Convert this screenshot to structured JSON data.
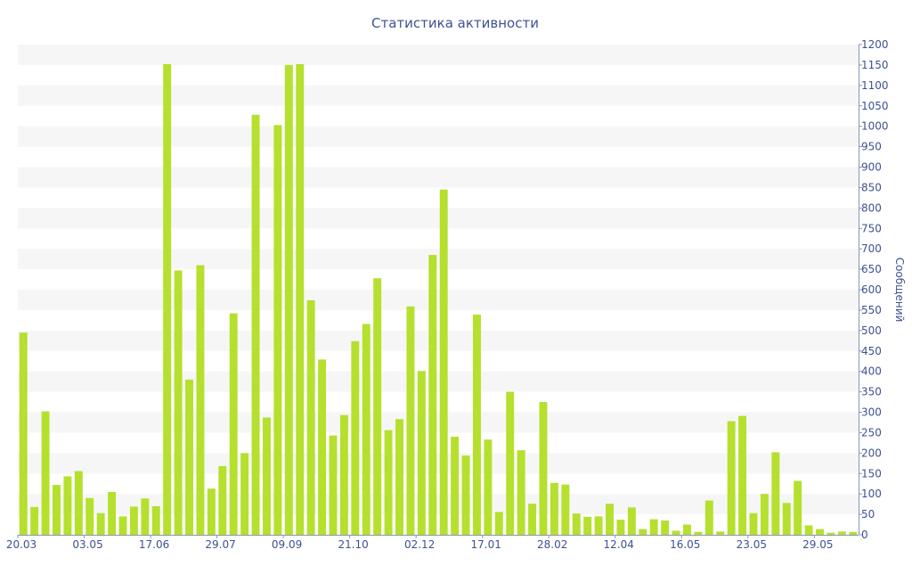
{
  "chart_data": {
    "type": "bar",
    "title": "Статистика активности",
    "xlabel": "",
    "ylabel": "Сообщений",
    "ylim": [
      0,
      1200
    ],
    "y_ticks": [
      0,
      50,
      100,
      150,
      200,
      250,
      300,
      350,
      400,
      450,
      500,
      550,
      600,
      650,
      700,
      750,
      800,
      850,
      900,
      950,
      1000,
      1050,
      1100,
      1150,
      1200
    ],
    "y_axis_side": "right",
    "grid": "alternating horizontal bands",
    "legend": "none",
    "bar_color": "#b5e02e",
    "band_color": "#f6f6f6",
    "text_color": "#3d5290",
    "x_tick_labels": [
      {
        "index": 0,
        "label": "20.03"
      },
      {
        "index": 6,
        "label": "03.05"
      },
      {
        "index": 12,
        "label": "17.06"
      },
      {
        "index": 18,
        "label": "29.07"
      },
      {
        "index": 24,
        "label": "09.09"
      },
      {
        "index": 30,
        "label": "21.10"
      },
      {
        "index": 36,
        "label": "02.12"
      },
      {
        "index": 42,
        "label": "17.01"
      },
      {
        "index": 48,
        "label": "28.02"
      },
      {
        "index": 54,
        "label": "12.04"
      },
      {
        "index": 60,
        "label": "16.05"
      },
      {
        "index": 66,
        "label": "23.05"
      },
      {
        "index": 72,
        "label": "29.05"
      }
    ],
    "values": [
      495,
      68,
      302,
      122,
      143,
      156,
      90,
      53,
      105,
      45,
      69,
      89,
      70,
      1152,
      647,
      380,
      660,
      113,
      168,
      542,
      200,
      1028,
      287,
      1003,
      1150,
      1152,
      574,
      429,
      243,
      293,
      474,
      516,
      628,
      256,
      283,
      559,
      401,
      685,
      845,
      240,
      194,
      539,
      233,
      56,
      350,
      207,
      76,
      325,
      127,
      123,
      52,
      44,
      45,
      76,
      37,
      67,
      14,
      38,
      35,
      10,
      25,
      7,
      84,
      8,
      278,
      291,
      53,
      100,
      202,
      78,
      132,
      23,
      14,
      5,
      8,
      7
    ]
  }
}
